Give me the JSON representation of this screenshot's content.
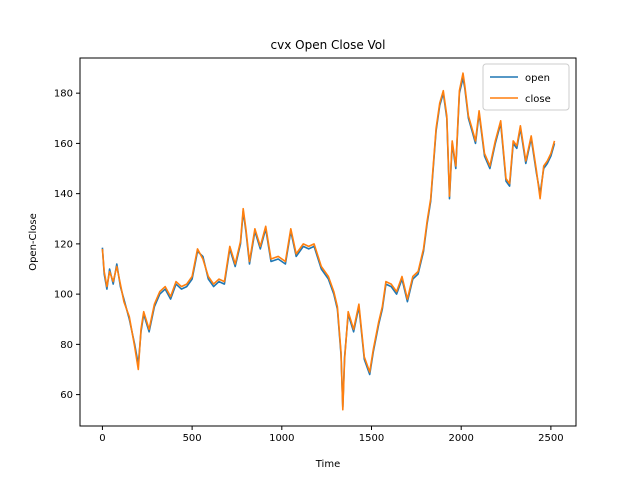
{
  "chart_data": {
    "type": "line",
    "title": "cvx Open Close Vol",
    "xlabel": "Time",
    "ylabel": "Open-Close",
    "xlim": [
      -125,
      2640
    ],
    "ylim": [
      47.5,
      194
    ],
    "xticks": [
      0,
      500,
      1000,
      1500,
      2000,
      2500
    ],
    "yticks": [
      60,
      80,
      100,
      120,
      140,
      160,
      180
    ],
    "grid": false,
    "legend": "top-right",
    "series": [
      {
        "name": "open",
        "color": "#1f77b4",
        "x": [
          0,
          10,
          25,
          40,
          60,
          80,
          100,
          120,
          150,
          180,
          200,
          215,
          230,
          260,
          290,
          320,
          350,
          380,
          410,
          440,
          470,
          500,
          530,
          560,
          590,
          620,
          650,
          680,
          710,
          740,
          770,
          785,
          800,
          820,
          850,
          880,
          910,
          940,
          980,
          1020,
          1050,
          1080,
          1120,
          1150,
          1180,
          1220,
          1260,
          1290,
          1310,
          1330,
          1340,
          1350,
          1370,
          1400,
          1430,
          1460,
          1490,
          1510,
          1540,
          1560,
          1580,
          1610,
          1640,
          1670,
          1700,
          1730,
          1760,
          1790,
          1810,
          1830,
          1860,
          1880,
          1900,
          1920,
          1935,
          1950,
          1970,
          1990,
          2010,
          2020,
          2040,
          2060,
          2080,
          2100,
          2130,
          2160,
          2190,
          2220,
          2250,
          2270,
          2290,
          2310,
          2330,
          2360,
          2390,
          2420,
          2440,
          2460,
          2480,
          2500,
          2520
        ],
        "values": [
          118.5,
          108,
          102,
          110,
          104,
          112,
          103,
          98,
          90,
          80,
          72,
          85,
          92,
          85,
          95,
          100,
          102,
          98,
          104,
          102,
          103,
          106,
          117,
          115,
          106,
          103,
          105,
          104,
          118,
          111,
          120,
          133,
          125,
          112,
          125,
          118,
          126,
          113,
          114,
          112,
          125,
          115,
          119,
          118,
          119,
          110,
          106,
          100,
          94,
          76,
          55,
          75,
          92,
          85,
          95,
          74,
          68,
          77,
          88,
          94,
          104,
          103,
          100,
          106,
          97,
          106,
          108,
          117,
          128,
          137,
          165,
          175,
          180,
          170,
          138,
          160,
          150,
          180,
          186,
          182,
          170,
          165,
          160,
          172,
          155,
          150,
          160,
          168,
          145,
          143,
          160,
          158,
          166,
          152,
          162,
          148,
          140,
          150,
          152,
          155,
          160
        ]
      },
      {
        "name": "close",
        "color": "#ff7f0e",
        "x": [
          0,
          10,
          25,
          40,
          60,
          80,
          100,
          120,
          150,
          180,
          200,
          215,
          230,
          260,
          290,
          320,
          350,
          380,
          410,
          440,
          470,
          500,
          530,
          560,
          590,
          620,
          650,
          680,
          710,
          740,
          770,
          785,
          800,
          820,
          850,
          880,
          910,
          940,
          980,
          1020,
          1050,
          1080,
          1120,
          1150,
          1180,
          1220,
          1260,
          1290,
          1310,
          1330,
          1340,
          1350,
          1370,
          1400,
          1430,
          1460,
          1490,
          1510,
          1540,
          1560,
          1580,
          1610,
          1640,
          1670,
          1700,
          1730,
          1760,
          1790,
          1810,
          1830,
          1860,
          1880,
          1900,
          1920,
          1935,
          1950,
          1970,
          1990,
          2010,
          2020,
          2040,
          2060,
          2080,
          2100,
          2130,
          2160,
          2190,
          2220,
          2250,
          2270,
          2290,
          2310,
          2330,
          2360,
          2390,
          2420,
          2440,
          2460,
          2480,
          2500,
          2520
        ],
        "values": [
          118,
          109,
          103,
          109,
          105,
          111,
          104,
          97,
          91,
          79,
          70,
          86,
          93,
          86,
          96,
          101,
          103,
          99,
          105,
          103,
          104,
          107,
          118,
          114,
          107,
          104,
          106,
          105,
          119,
          112,
          121,
          134,
          126,
          113,
          126,
          119,
          127,
          114,
          115,
          113,
          126,
          116,
          120,
          119,
          120,
          111,
          107,
          101,
          95,
          77,
          54,
          74,
          93,
          86,
          96,
          75,
          69,
          78,
          89,
          95,
          105,
          104,
          101,
          107,
          98,
          107,
          109,
          118,
          129,
          138,
          166,
          176,
          181,
          171,
          139,
          161,
          151,
          181,
          188,
          183,
          171,
          166,
          161,
          173,
          156,
          151,
          161,
          169,
          146,
          144,
          161,
          159,
          167,
          153,
          163,
          149,
          138,
          151,
          153,
          156,
          161
        ]
      }
    ]
  }
}
